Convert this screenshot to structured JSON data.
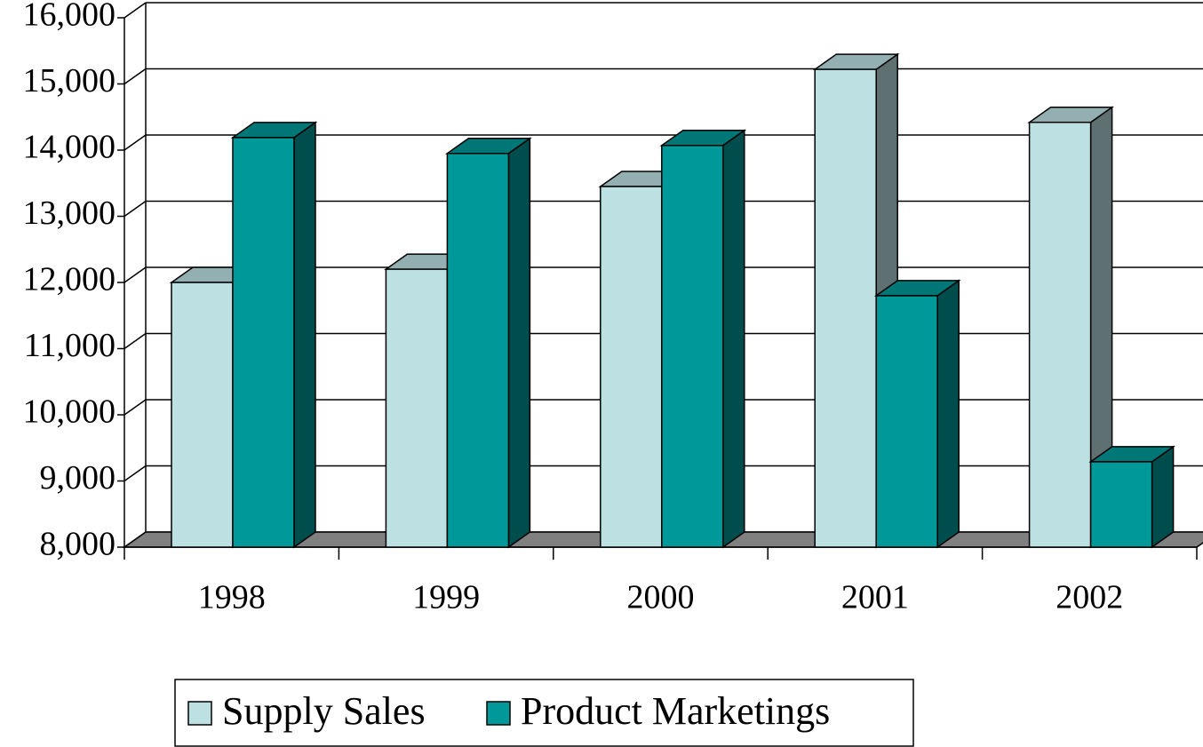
{
  "chart_data": {
    "type": "bar3d",
    "categories": [
      "1998",
      "1999",
      "2000",
      "2001",
      "2002"
    ],
    "series": [
      {
        "name": "Supply Sales",
        "color": "#bde0e3",
        "values": [
          12000,
          12200,
          13450,
          15220,
          14420
        ]
      },
      {
        "name": "Product Marketings",
        "color": "#009999",
        "values": [
          14190,
          13950,
          14070,
          11800,
          9290
        ]
      }
    ],
    "ylim": [
      8000,
      16000
    ],
    "yticks": [
      {
        "value": 8000,
        "label": "8,000"
      },
      {
        "value": 9000,
        "label": "9,000"
      },
      {
        "value": 10000,
        "label": "10,000"
      },
      {
        "value": 11000,
        "label": "11,000"
      },
      {
        "value": 12000,
        "label": "12,000"
      },
      {
        "value": 13000,
        "label": "13,000"
      },
      {
        "value": 14000,
        "label": "14,000"
      },
      {
        "value": 15000,
        "label": "15,000"
      },
      {
        "value": 16000,
        "label": "16,000"
      }
    ],
    "grid": true
  }
}
